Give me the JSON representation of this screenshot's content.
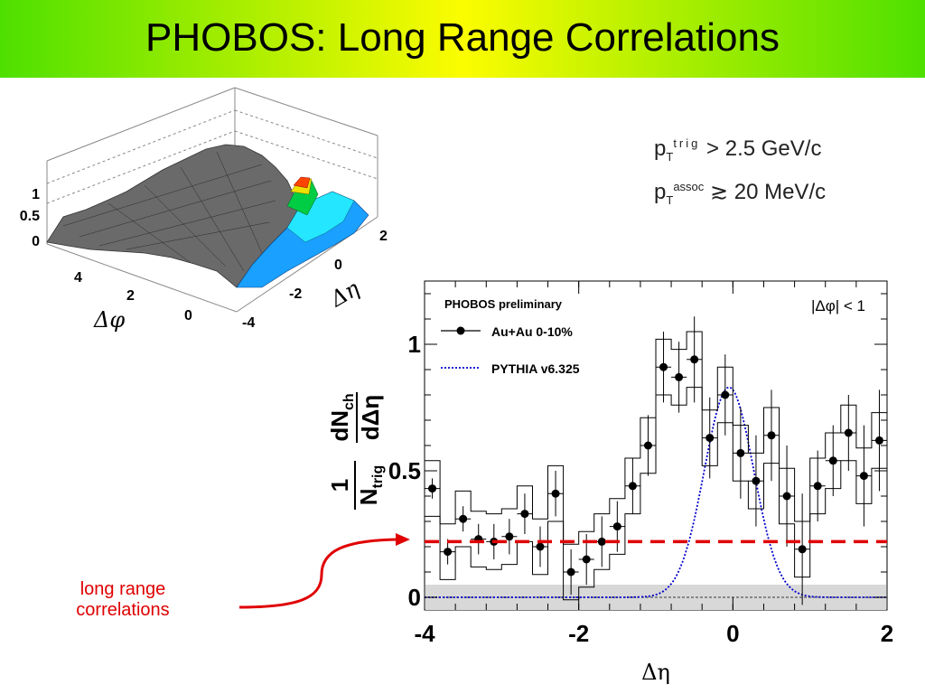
{
  "slide": {
    "title": "PHOBOS: Long Range Correlations",
    "title_bar_colors": [
      "#4ee000",
      "#fcfc00"
    ]
  },
  "cuts": {
    "line1_main": "p",
    "line1_sub": "T",
    "line1_sup": "trig",
    "line1_rest": " > 2.5 GeV/c",
    "line2_main": "p",
    "line2_sub": "T",
    "line2_sup": "assoc",
    "line2_rest": " ≳ 20 MeV/c"
  },
  "annotation": {
    "line1": "long range",
    "line2": "correlations",
    "color": "#e00000"
  },
  "lego_plot": {
    "type": "surface",
    "z_ticks": [
      "1",
      "0.5",
      "0"
    ],
    "phi_ticks": [
      "4",
      "2",
      "0"
    ],
    "eta_ticks": [
      "2",
      "0",
      "-2",
      "-4"
    ],
    "xlabel": "Δφ",
    "ylabel": "Δη",
    "surface_color": "#6a6a6a",
    "peak_colors": [
      "#1aa0ff",
      "#25e6ff",
      "#00cc44",
      "#f0e000",
      "#ff4400"
    ]
  },
  "chart_data": {
    "type": "scatter",
    "label": "PHOBOS preliminary",
    "cut_label": "|Δφ| < 1",
    "xlabel": "Δη",
    "ylabel_frac_num": "1",
    "ylabel_frac_den": "N",
    "ylabel_frac_den_sub": "trig",
    "ylabel_num": "dN",
    "ylabel_num_sub": "ch",
    "ylabel_den": "dΔη",
    "xlim": [
      -4,
      2
    ],
    "ylim": [
      -0.05,
      1.25
    ],
    "x_ticks": [
      -4,
      -2,
      0,
      2
    ],
    "x_tick_labels": [
      "-4",
      "-2",
      "0",
      "2"
    ],
    "y_ticks": [
      0,
      0.5,
      1
    ],
    "y_tick_labels": [
      "0",
      "0.5",
      "1"
    ],
    "series": [
      {
        "name": "Au+Au 0-10%",
        "color": "#000000",
        "x": [
          -3.9,
          -3.7,
          -3.5,
          -3.3,
          -3.1,
          -2.9,
          -2.7,
          -2.5,
          -2.3,
          -2.1,
          -1.9,
          -1.7,
          -1.5,
          -1.3,
          -1.1,
          -0.9,
          -0.7,
          -0.5,
          -0.3,
          -0.1,
          0.1,
          0.3,
          0.5,
          0.7,
          0.9,
          1.1,
          1.3,
          1.5,
          1.7,
          1.9
        ],
        "y": [
          0.43,
          0.18,
          0.31,
          0.23,
          0.22,
          0.24,
          0.33,
          0.2,
          0.41,
          0.1,
          0.15,
          0.22,
          0.28,
          0.44,
          0.6,
          0.91,
          0.87,
          0.94,
          0.63,
          0.8,
          0.57,
          0.46,
          0.64,
          0.4,
          0.19,
          0.44,
          0.54,
          0.65,
          0.48,
          0.62
        ],
        "yerr": [
          0.04,
          0.05,
          0.05,
          0.06,
          0.07,
          0.07,
          0.08,
          0.08,
          0.09,
          0.09,
          0.1,
          0.1,
          0.1,
          0.11,
          0.12,
          0.14,
          0.14,
          0.17,
          0.16,
          0.16,
          0.18,
          0.18,
          0.18,
          0.2,
          0.22,
          0.14,
          0.14,
          0.15,
          0.2,
          0.2
        ],
        "sys_band": 0.11
      },
      {
        "name": "PYTHIA v6.325",
        "color": "#0000cc",
        "style": "dotted",
        "gauss_amplitude": 0.83,
        "gauss_mean": -0.05,
        "gauss_sigma": 0.32
      }
    ],
    "long_range_level": 0.22,
    "long_range_color": "#e00000",
    "baseline_band": [
      -0.05,
      0.05
    ]
  }
}
